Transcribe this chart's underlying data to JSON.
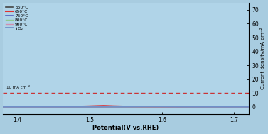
{
  "xlabel": "Potential(V vs.RHE)",
  "ylabel": "Current density/mA cm⁻²",
  "xlim": [
    1.38,
    1.72
  ],
  "ylim": [
    -5,
    75
  ],
  "yticks": [
    0,
    10,
    20,
    30,
    40,
    50,
    60,
    70
  ],
  "xticks": [
    1.4,
    1.5,
    1.6,
    1.7
  ],
  "ref_line_y": 10,
  "bg_color": "#a8cce0",
  "plot_bg": "#c8e0ee",
  "series": [
    {
      "label": "550°C",
      "color": "#444444",
      "lw": 1.2,
      "onset": 1.62,
      "steep": 28,
      "scale": 0.3,
      "dip_x": 1.5,
      "dip_val": 1.0
    },
    {
      "label": "650°C",
      "color": "#e03030",
      "lw": 1.5,
      "onset": 1.5,
      "steep": 30,
      "scale": 0.5,
      "dip_x": 1.42,
      "dip_val": 2.0
    },
    {
      "label": "750°C",
      "color": "#5060c0",
      "lw": 1.2,
      "onset": 1.58,
      "steep": 28,
      "scale": 0.35,
      "dip_x": 1.48,
      "dip_val": 1.5
    },
    {
      "label": "800°C",
      "color": "#90c890",
      "lw": 1.0,
      "onset": 1.63,
      "steep": 28,
      "scale": 0.25,
      "dip_x": 1.52,
      "dip_val": 0.8
    },
    {
      "label": "900°C",
      "color": "#d090b0",
      "lw": 1.0,
      "onset": 1.64,
      "steep": 28,
      "scale": 0.22,
      "dip_x": 1.54,
      "dip_val": 0.6
    },
    {
      "label": "IrO₂",
      "color": "#7090c8",
      "lw": 1.3,
      "onset": 1.6,
      "steep": 26,
      "scale": 0.28,
      "dip_x": 1.5,
      "dip_val": 1.2
    }
  ],
  "annotation": "10 mA cm⁻²"
}
